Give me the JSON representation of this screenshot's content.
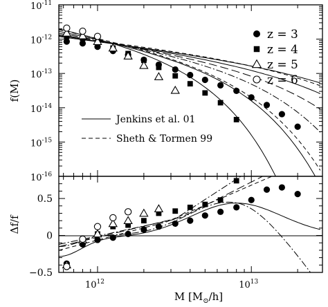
{
  "chart_data": {
    "type": "scatter",
    "xlabel_base": "M [M",
    "xlabel_sub": "⊙",
    "xlabel_tail": "/h]",
    "x_tick_labels": [
      {
        "mantissa": "10",
        "exp": "12"
      },
      {
        "mantissa": "10",
        "exp": "13"
      }
    ],
    "xlim": [
      560000000000.0,
      29000000000000.0
    ],
    "xscale": "log",
    "top_panel": {
      "ylabel": "f(M)",
      "yscale": "log",
      "ylim": [
        1e-16,
        1e-11
      ],
      "y_tick_labels": [
        {
          "mantissa": "10",
          "exp": "-11"
        },
        {
          "mantissa": "10",
          "exp": "-12"
        },
        {
          "mantissa": "10",
          "exp": "-13"
        },
        {
          "mantissa": "10",
          "exp": "-14"
        },
        {
          "mantissa": "10",
          "exp": "-15"
        },
        {
          "mantissa": "10",
          "exp": "-16"
        }
      ],
      "legend_points": {
        "position": "top-right",
        "entries": [
          {
            "marker": "filled-circle",
            "label": "z = 3"
          },
          {
            "marker": "filled-square",
            "label": "z = 4"
          },
          {
            "marker": "open-triangle",
            "label": "z = 5"
          },
          {
            "marker": "open-circle",
            "label": "z = 6"
          }
        ]
      },
      "legend_lines": {
        "position": "bottom-left",
        "entries": [
          {
            "style": "solid",
            "label": "Jenkins et al. 01"
          },
          {
            "style": "dashed",
            "label": "Sheth & Tormen 99"
          }
        ]
      },
      "series": [
        {
          "name": "z = 3",
          "marker": "filled-circle",
          "x": [
            630000000000.0,
            800000000000.0,
            1000000000000.0,
            1260000000000.0,
            1580000000000.0,
            2000000000000.0,
            2500000000000.0,
            3200000000000.0,
            4000000000000.0,
            5000000000000.0,
            6300000000000.0,
            8000000000000.0,
            10000000000000.0,
            12600000000000.0,
            15800000000000.0,
            20000000000000.0
          ],
          "y": [
            8.5e-13,
            7.5e-13,
            6e-13,
            4.5e-13,
            3.5e-13,
            2.5e-13,
            1.8e-13,
            1.3e-13,
            9e-14,
            6.5e-14,
            4.5e-14,
            3.1e-14,
            2e-14,
            1.2e-14,
            6.5e-15,
            2.8e-15
          ]
        },
        {
          "name": "z = 4",
          "marker": "filled-square",
          "x": [
            630000000000.0,
            800000000000.0,
            1000000000000.0,
            1260000000000.0,
            1580000000000.0,
            2000000000000.0,
            2500000000000.0,
            3200000000000.0,
            4000000000000.0,
            5000000000000.0,
            6300000000000.0,
            8000000000000.0
          ],
          "y": [
            1.2e-12,
            1.05e-12,
            8e-13,
            5.5e-13,
            3.8e-13,
            2.4e-13,
            1.5e-13,
            8.5e-14,
            5e-14,
            2.7e-14,
            1.4e-14,
            4.5e-15
          ]
        },
        {
          "name": "z = 5",
          "marker": "open-triangle",
          "x": [
            630000000000.0,
            800000000000.0,
            1000000000000.0,
            1260000000000.0,
            1580000000000.0,
            2000000000000.0,
            2500000000000.0,
            3200000000000.0
          ],
          "y": [
            1.5e-12,
            1.25e-12,
            8.5e-13,
            5.5e-13,
            3.2e-13,
            1.7e-13,
            8e-14,
            3.2e-14
          ]
        },
        {
          "name": "z = 6",
          "marker": "open-circle",
          "x": [
            630000000000.0,
            800000000000.0,
            1000000000000.0
          ],
          "y": [
            2.1e-12,
            1.7e-12,
            1.2e-12
          ]
        }
      ]
    },
    "bottom_panel": {
      "ylabel": "Δf/f",
      "ylim": [
        -0.5,
        0.8
      ],
      "y_ticks": [
        -0.5,
        0,
        0.5
      ],
      "y_tick_labels": [
        "−0.5",
        "0",
        "0.5"
      ],
      "series": [
        {
          "name": "z = 3",
          "marker": "filled-circle",
          "x": [
            630000000000.0,
            800000000000.0,
            1000000000000.0,
            1260000000000.0,
            1580000000000.0,
            2000000000000.0,
            2500000000000.0,
            3200000000000.0,
            4000000000000.0,
            5000000000000.0,
            6300000000000.0,
            8000000000000.0,
            10000000000000.0,
            12600000000000.0,
            15800000000000.0,
            20000000000000.0
          ],
          "y": [
            -0.38,
            -0.12,
            -0.06,
            -0.03,
            0.02,
            0.08,
            0.12,
            0.16,
            0.2,
            0.27,
            0.32,
            0.38,
            0.48,
            0.62,
            0.65,
            0.56
          ]
        },
        {
          "name": "z = 4",
          "marker": "filled-square",
          "x": [
            630000000000.0,
            800000000000.0,
            1000000000000.0,
            1260000000000.0,
            1580000000000.0,
            2000000000000.0,
            2500000000000.0,
            3200000000000.0,
            4000000000000.0,
            5000000000000.0,
            6300000000000.0,
            8000000000000.0
          ],
          "y": [
            -0.4,
            -0.08,
            0.02,
            0.12,
            0.14,
            0.2,
            0.3,
            0.33,
            0.38,
            0.42,
            0.48,
            0.74
          ]
        },
        {
          "name": "z = 5",
          "marker": "open-triangle",
          "x": [
            630000000000.0,
            800000000000.0,
            1000000000000.0,
            1260000000000.0,
            1580000000000.0,
            2000000000000.0,
            2500000000000.0
          ],
          "y": [
            -0.4,
            -0.06,
            0.02,
            0.16,
            0.2,
            0.3,
            0.36
          ]
        },
        {
          "name": "z = 6",
          "marker": "open-circle",
          "x": [
            630000000000.0,
            800000000000.0,
            1000000000000.0,
            1260000000000.0,
            1580000000000.0
          ],
          "y": [
            -0.42,
            -0.05,
            0.12,
            0.24,
            0.32
          ]
        }
      ]
    }
  }
}
